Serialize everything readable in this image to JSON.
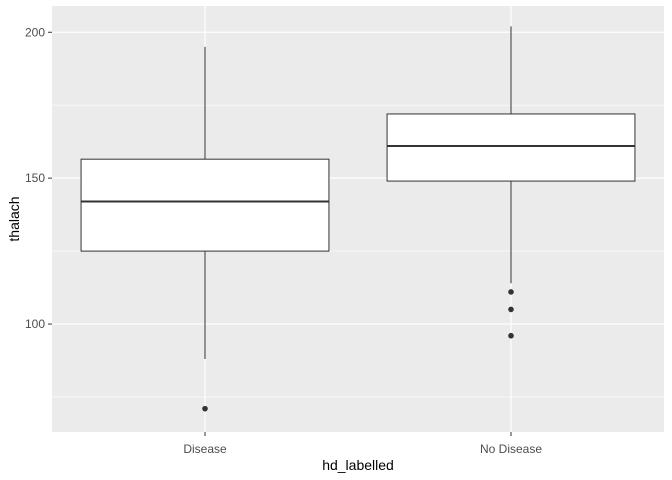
{
  "chart_data": {
    "type": "boxplot",
    "title": "",
    "xlabel": "hd_labelled",
    "ylabel": "thalach",
    "ylim": [
      63,
      209
    ],
    "y_ticks": [
      100,
      150,
      200
    ],
    "y_minor_ticks": [
      75,
      125,
      175
    ],
    "grid": true,
    "legend": "none",
    "categories": [
      "Disease",
      "No Disease"
    ],
    "boxes": [
      {
        "category": "Disease",
        "whisker_low": 88,
        "q1": 125,
        "median": 142,
        "q3": 156.5,
        "whisker_high": 195,
        "outliers": [
          71
        ]
      },
      {
        "category": "No Disease",
        "whisker_low": 114,
        "q1": 149,
        "median": 161,
        "q3": 172,
        "whisker_high": 202,
        "outliers": [
          111,
          105,
          96
        ]
      }
    ],
    "colors": {
      "panel": "#ebebeb",
      "grid_major": "#ffffff",
      "box_fill": "#ffffff",
      "box_line": "#333333",
      "outlier": "#333333"
    }
  }
}
